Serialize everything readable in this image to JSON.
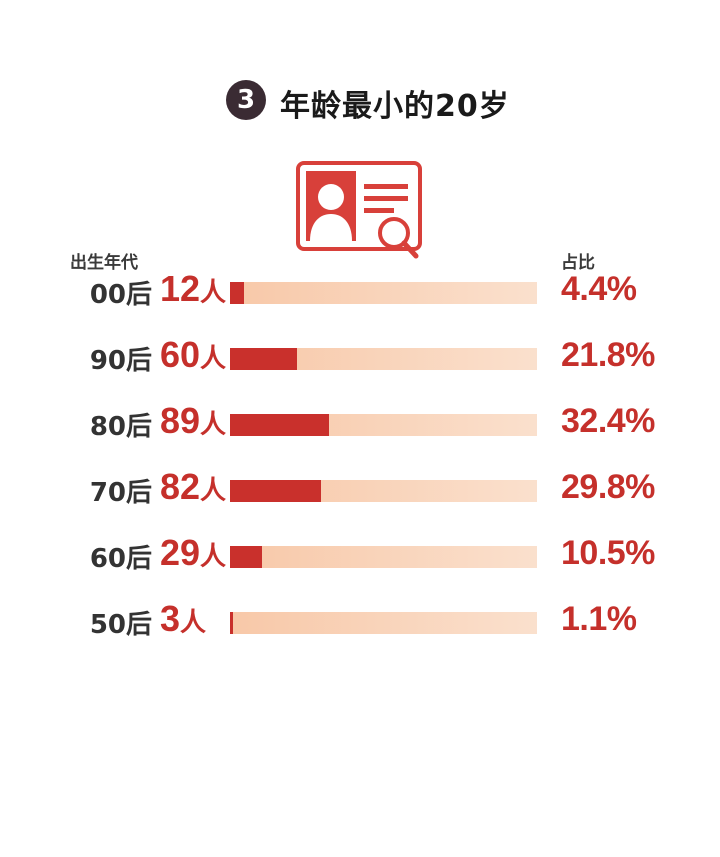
{
  "header": {
    "badge": "3",
    "title": "年龄最小的20岁"
  },
  "labels": {
    "left": "出生年代",
    "right": "占比"
  },
  "colors": {
    "accent": "#c9302c",
    "track": "#f9d6bd",
    "badge": "#3a2b33"
  },
  "icon": "id-card-search-icon",
  "chart_data": {
    "type": "bar",
    "orientation": "horizontal",
    "categories": [
      "00后",
      "90后",
      "80后",
      "70后",
      "60后",
      "50后"
    ],
    "values": [
      12,
      60,
      89,
      82,
      29,
      3
    ],
    "unit": "人",
    "percentages": [
      "4.4%",
      "21.8%",
      "32.4%",
      "29.8%",
      "10.5%",
      "1.1%"
    ],
    "percent_values": [
      4.4,
      21.8,
      32.4,
      29.8,
      10.5,
      1.1
    ],
    "xlim": [
      0,
      100
    ]
  }
}
